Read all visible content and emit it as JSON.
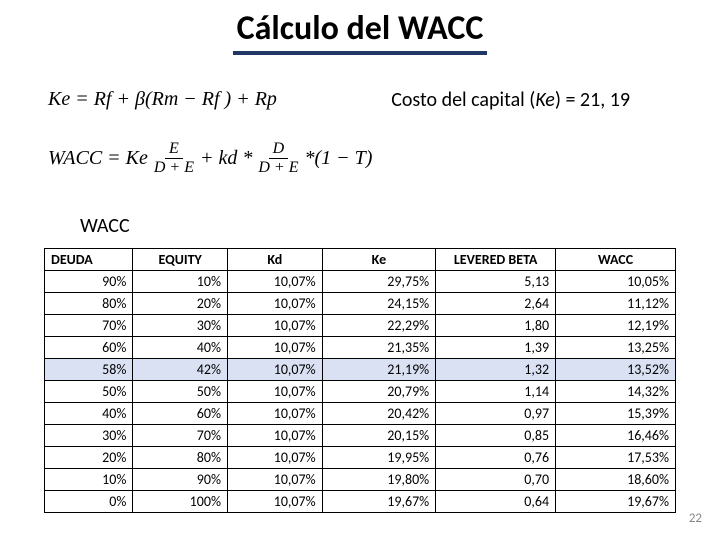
{
  "title": "Cálculo del WACC",
  "title_underline_color": "#1f3864",
  "formula_ke": "Ke = Rf + β(Rm − Rf ) + Rp",
  "formula_wacc": {
    "lhs": "WACC = Ke",
    "frac1_num": "E",
    "frac1_den": "D + E",
    "plus_kd": " + kd *",
    "frac2_num": "D",
    "frac2_den": "D + E",
    "tail": "*(1 − T)"
  },
  "costo_label": "Costo del capital (Ke) = 21, 19",
  "wacc_label": "WACC",
  "table": {
    "columns": [
      "DEUDA",
      "EQUITY",
      "Kd",
      "Ke",
      "LEVERED BETA",
      "WACC"
    ],
    "highlight_row_index": 4,
    "highlight_bg": "#d9e1f2",
    "col_widths_pct": [
      14,
      15,
      15,
      18,
      19,
      19
    ],
    "border_color": "#000000",
    "header_align": [
      "left",
      "center",
      "center",
      "center",
      "center",
      "center"
    ],
    "rows": [
      [
        "90%",
        "10%",
        "10,07%",
        "29,75%",
        "5,13",
        "10,05%"
      ],
      [
        "80%",
        "20%",
        "10,07%",
        "24,15%",
        "2,64",
        "11,12%"
      ],
      [
        "70%",
        "30%",
        "10,07%",
        "22,29%",
        "1,80",
        "12,19%"
      ],
      [
        "60%",
        "40%",
        "10,07%",
        "21,35%",
        "1,39",
        "13,25%"
      ],
      [
        "58%",
        "42%",
        "10,07%",
        "21,19%",
        "1,32",
        "13,52%"
      ],
      [
        "50%",
        "50%",
        "10,07%",
        "20,79%",
        "1,14",
        "14,32%"
      ],
      [
        "40%",
        "60%",
        "10,07%",
        "20,42%",
        "0,97",
        "15,39%"
      ],
      [
        "30%",
        "70%",
        "10,07%",
        "20,15%",
        "0,85",
        "16,46%"
      ],
      [
        "20%",
        "80%",
        "10,07%",
        "19,95%",
        "0,76",
        "17,53%"
      ],
      [
        "10%",
        "90%",
        "10,07%",
        "19,80%",
        "0,70",
        "18,60%"
      ],
      [
        "0%",
        "100%",
        "10,07%",
        "19,67%",
        "0,64",
        "19,67%"
      ]
    ]
  },
  "page_number": "22",
  "background_color": "#ffffff"
}
